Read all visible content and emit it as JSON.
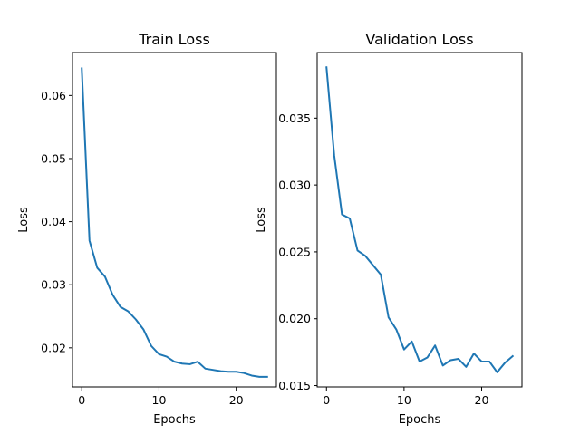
{
  "chart_data": [
    {
      "type": "line",
      "title": "Train Loss",
      "xlabel": "Epochs",
      "ylabel": "Loss",
      "xlim": [
        -1.2,
        25.2
      ],
      "ylim": [
        0.0138,
        0.0668
      ],
      "xticks": [
        0,
        10,
        20
      ],
      "xtick_labels": [
        "0",
        "10",
        "20"
      ],
      "yticks": [
        0.02,
        0.03,
        0.04,
        0.05,
        0.06
      ],
      "ytick_labels": [
        "0.02",
        "0.03",
        "0.04",
        "0.05",
        "0.06"
      ],
      "grid": false,
      "color": "#1f77b4",
      "series": [
        {
          "x": [
            0,
            1,
            2,
            3,
            4,
            5,
            6,
            7,
            8,
            9,
            10,
            11,
            12,
            13,
            14,
            15,
            16,
            17,
            18,
            19,
            20,
            21,
            22,
            23,
            24
          ],
          "values": [
            0.0643,
            0.037,
            0.0327,
            0.0313,
            0.0284,
            0.0265,
            0.0258,
            0.0245,
            0.0229,
            0.0203,
            0.019,
            0.0186,
            0.0178,
            0.0175,
            0.0174,
            0.0178,
            0.0167,
            0.0165,
            0.0163,
            0.0162,
            0.0162,
            0.016,
            0.0156,
            0.0154,
            0.0154
          ]
        }
      ]
    },
    {
      "type": "line",
      "title": "Validation Loss",
      "xlabel": "Epochs",
      "ylabel": "Loss",
      "xlim": [
        -1.2,
        25.2
      ],
      "ylim": [
        0.0149,
        0.0399
      ],
      "xticks": [
        0,
        10,
        20
      ],
      "xtick_labels": [
        "0",
        "10",
        "20"
      ],
      "yticks": [
        0.015,
        0.02,
        0.025,
        0.03,
        0.035
      ],
      "ytick_labels": [
        "0.015",
        "0.020",
        "0.025",
        "0.030",
        "0.035"
      ],
      "grid": false,
      "color": "#1f77b4",
      "series": [
        {
          "x": [
            0,
            1,
            2,
            3,
            4,
            5,
            6,
            7,
            8,
            9,
            10,
            11,
            12,
            13,
            14,
            15,
            16,
            17,
            18,
            19,
            20,
            21,
            22,
            23,
            24
          ],
          "values": [
            0.0388,
            0.0322,
            0.0278,
            0.0275,
            0.0251,
            0.0247,
            0.024,
            0.0233,
            0.0201,
            0.0192,
            0.0177,
            0.0183,
            0.0168,
            0.0171,
            0.018,
            0.0165,
            0.0169,
            0.017,
            0.0164,
            0.0174,
            0.0168,
            0.0168,
            0.016,
            0.0167,
            0.0172
          ]
        }
      ]
    }
  ]
}
